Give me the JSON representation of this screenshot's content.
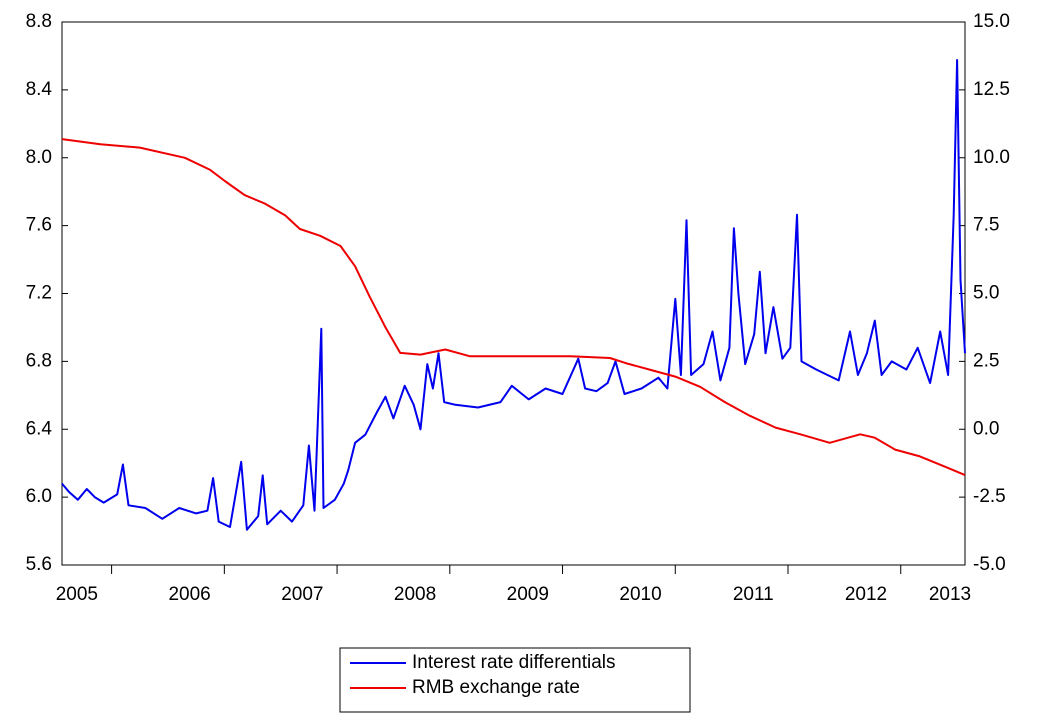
{
  "chart_data": {
    "type": "line",
    "xlim": [
      2005.56,
      2013.57
    ],
    "xticks": [
      2005,
      2006,
      2007,
      2008,
      2009,
      2010,
      2011,
      2012,
      2013
    ],
    "ylim": [
      5.6,
      8.8
    ],
    "yticks": [
      5.6,
      {
        "value": 6,
        "label": "6.0"
      },
      6.4,
      6.8,
      7.2,
      7.6,
      {
        "value": 8,
        "label": "8.0"
      },
      8.4,
      8.8
    ],
    "y2lim": [
      -5,
      15
    ],
    "y2ticks": [
      {
        "value": -5,
        "label": "-5.0"
      },
      {
        "value": -2.5,
        "label": "-2.5"
      },
      {
        "value": 0,
        "label": "0.0"
      },
      {
        "value": 2.5,
        "label": "2.5"
      },
      {
        "value": 5,
        "label": "5.0"
      },
      {
        "value": 7.5,
        "label": "7.5"
      },
      {
        "value": 10,
        "label": "10.0"
      },
      {
        "value": 12.5,
        "label": "12.5"
      },
      {
        "value": 15,
        "label": "15.0"
      }
    ],
    "grid": false,
    "legend": "bottom",
    "series": [
      {
        "name": "Interest rate differentials",
        "color": "#0000ee",
        "axis": "y2",
        "x": [
          2005.56,
          2005.62,
          2005.7,
          2005.78,
          2005.85,
          2005.93,
          2006.05,
          2006.1,
          2006.15,
          2006.3,
          2006.45,
          2006.6,
          2006.75,
          2006.85,
          2006.9,
          2006.95,
          2007.05,
          2007.15,
          2007.2,
          2007.3,
          2007.34,
          2007.38,
          2007.5,
          2007.6,
          2007.7,
          2007.75,
          2007.8,
          2007.86,
          2007.88,
          2007.98,
          2008.06,
          2008.1,
          2008.16,
          2008.25,
          2008.35,
          2008.43,
          2008.5,
          2008.6,
          2008.68,
          2008.74,
          2008.8,
          2008.85,
          2008.9,
          2008.95,
          2009.05,
          2009.25,
          2009.45,
          2009.55,
          2009.7,
          2009.85,
          2010.0,
          2010.14,
          2010.2,
          2010.3,
          2010.4,
          2010.47,
          2010.55,
          2010.7,
          2010.85,
          2010.93,
          2011.0,
          2011.05,
          2011.1,
          2011.14,
          2011.25,
          2011.33,
          2011.4,
          2011.48,
          2011.52,
          2011.56,
          2011.62,
          2011.7,
          2011.75,
          2011.8,
          2011.87,
          2011.95,
          2012.02,
          2012.08,
          2012.12,
          2012.25,
          2012.35,
          2012.45,
          2012.55,
          2012.62,
          2012.7,
          2012.77,
          2012.83,
          2012.92,
          2013.05,
          2013.15,
          2013.26,
          2013.35,
          2013.42,
          2013.47,
          2013.5,
          2013.53,
          2013.57
        ],
        "values": [
          -2.0,
          -2.3,
          -2.6,
          -2.2,
          -2.5,
          -2.7,
          -2.4,
          -1.3,
          -2.8,
          -2.9,
          -3.3,
          -2.9,
          -3.1,
          -3.0,
          -1.8,
          -3.4,
          -3.6,
          -1.2,
          -3.7,
          -3.2,
          -1.7,
          -3.5,
          -3.0,
          -3.4,
          -2.8,
          -0.6,
          -3.0,
          3.7,
          -2.9,
          -2.6,
          -2.0,
          -1.5,
          -0.5,
          -0.2,
          0.6,
          1.2,
          0.4,
          1.6,
          0.9,
          0.0,
          2.4,
          1.5,
          2.8,
          1.0,
          0.9,
          0.8,
          1.0,
          1.6,
          1.1,
          1.5,
          1.3,
          2.6,
          1.5,
          1.4,
          1.7,
          2.5,
          1.3,
          1.5,
          1.9,
          1.5,
          4.8,
          2.0,
          7.7,
          2.0,
          2.4,
          3.6,
          1.8,
          3.0,
          7.4,
          5.0,
          2.4,
          3.5,
          5.8,
          2.8,
          4.5,
          2.6,
          3.0,
          7.9,
          2.5,
          2.2,
          2.0,
          1.8,
          3.6,
          2.0,
          2.8,
          4.0,
          2.0,
          2.5,
          2.2,
          3.0,
          1.7,
          3.6,
          2.0,
          7.9,
          13.6,
          5.5,
          2.8
        ]
      },
      {
        "name": "RMB exchange rate",
        "color": "#ee0000",
        "axis": "y",
        "x": [
          2005.56,
          2005.9,
          2006.25,
          2006.65,
          2006.87,
          2007.01,
          2007.18,
          2007.36,
          2007.54,
          2007.67,
          2007.85,
          2008.03,
          2008.16,
          2008.29,
          2008.43,
          2008.56,
          2008.74,
          2008.96,
          2009.18,
          2009.62,
          2010.07,
          2010.42,
          2010.56,
          2010.78,
          2011.0,
          2011.22,
          2011.44,
          2011.66,
          2011.89,
          2012.11,
          2012.37,
          2012.64,
          2012.77,
          2012.95,
          2013.17,
          2013.39,
          2013.57
        ],
        "values": [
          8.11,
          8.08,
          8.06,
          8.0,
          7.93,
          7.86,
          7.78,
          7.73,
          7.66,
          7.58,
          7.54,
          7.48,
          7.36,
          7.18,
          7.0,
          6.85,
          6.84,
          6.87,
          6.83,
          6.83,
          6.83,
          6.82,
          6.79,
          6.75,
          6.71,
          6.65,
          6.56,
          6.48,
          6.41,
          6.37,
          6.32,
          6.37,
          6.35,
          6.28,
          6.24,
          6.18,
          6.13
        ]
      }
    ]
  }
}
